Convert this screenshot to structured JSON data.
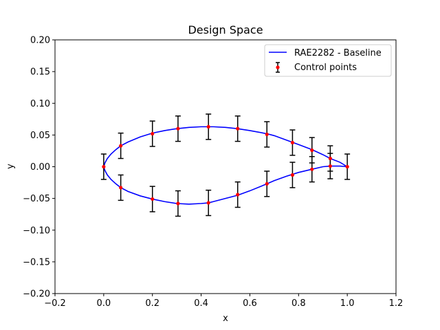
{
  "chart_data": {
    "type": "line",
    "title": "Design Space",
    "xlabel": "x",
    "ylabel": "y",
    "xlim": [
      -0.2,
      1.2
    ],
    "ylim": [
      -0.2,
      0.2
    ],
    "xticks": [
      "−0.2",
      "0.0",
      "0.2",
      "0.4",
      "0.6",
      "0.8",
      "1.0",
      "1.2"
    ],
    "yticks": [
      "−0.20",
      "−0.15",
      "−0.10",
      "−0.05",
      "0.00",
      "0.05",
      "0.10",
      "0.15",
      "0.20"
    ],
    "grid": false,
    "legend_position": "upper-right",
    "series": [
      {
        "name": "RAE2282 - Baseline",
        "kind": "line",
        "color": "#0000ff",
        "x": [
          1.0,
          0.97,
          0.93,
          0.9,
          0.855,
          0.8,
          0.75,
          0.7,
          0.67,
          0.6,
          0.55,
          0.5,
          0.45,
          0.43,
          0.4,
          0.35,
          0.3,
          0.25,
          0.2,
          0.15,
          0.1,
          0.07,
          0.05,
          0.03,
          0.015,
          0.005,
          0.0,
          0.005,
          0.015,
          0.03,
          0.05,
          0.07,
          0.1,
          0.15,
          0.2,
          0.25,
          0.3,
          0.35,
          0.4,
          0.43,
          0.45,
          0.5,
          0.55,
          0.6,
          0.67,
          0.7,
          0.75,
          0.8,
          0.855,
          0.9,
          0.93,
          0.97,
          1.0
        ],
        "y": [
          0.0,
          0.007,
          0.013,
          0.019,
          0.027,
          0.035,
          0.042,
          0.049,
          0.052,
          0.057,
          0.06,
          0.062,
          0.063,
          0.063,
          0.063,
          0.062,
          0.06,
          0.057,
          0.053,
          0.047,
          0.039,
          0.033,
          0.027,
          0.02,
          0.013,
          0.006,
          0.0,
          -0.006,
          -0.013,
          -0.02,
          -0.027,
          -0.033,
          -0.039,
          -0.046,
          -0.051,
          -0.055,
          -0.058,
          -0.059,
          -0.058,
          -0.057,
          -0.055,
          -0.05,
          -0.045,
          -0.038,
          -0.027,
          -0.022,
          -0.015,
          -0.009,
          -0.004,
          0.0,
          0.001,
          0.001,
          0.0
        ]
      },
      {
        "name": "Control points",
        "kind": "errorbar",
        "marker_color": "#ff0000",
        "errorbar_color": "#000000",
        "error": 0.02,
        "x": [
          0.0,
          0.07,
          0.2,
          0.305,
          0.43,
          0.55,
          0.67,
          0.775,
          0.855,
          0.93,
          1.0,
          0.93,
          0.855,
          0.775,
          0.67,
          0.55,
          0.43,
          0.305,
          0.2,
          0.07
        ],
        "y": [
          0.0,
          0.033,
          0.052,
          0.06,
          0.063,
          0.06,
          0.051,
          0.038,
          0.026,
          0.013,
          0.0,
          0.001,
          -0.004,
          -0.013,
          -0.027,
          -0.044,
          -0.057,
          -0.058,
          -0.051,
          -0.033
        ]
      }
    ]
  }
}
